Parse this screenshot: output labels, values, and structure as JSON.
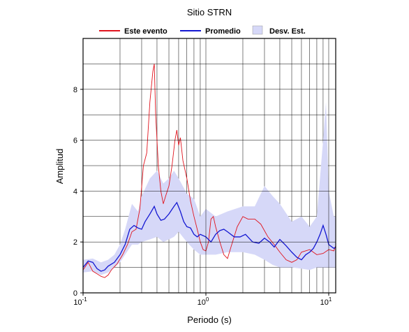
{
  "chart_data": {
    "type": "line",
    "title": "Sitio STRN",
    "x_label": "Periodo (s)",
    "y_label": "Amplitud",
    "xscale": "log",
    "xlim": [
      0.1,
      11.4
    ],
    "ylim": [
      0,
      10
    ],
    "xticks": [
      {
        "value": 0.1,
        "label": "10",
        "exponent": "-1"
      },
      {
        "value": 1,
        "label": "10",
        "exponent": "0"
      },
      {
        "value": 10,
        "label": "10",
        "exponent": "1"
      }
    ],
    "xminor": [
      0.2,
      0.3,
      0.4,
      0.5,
      0.6,
      0.7,
      0.8,
      0.9,
      2,
      3,
      4,
      5,
      6,
      7,
      8,
      9
    ],
    "yticks": [
      0,
      2,
      4,
      6,
      8
    ],
    "yminor": [
      1,
      3,
      5,
      7,
      9
    ],
    "grid": true,
    "legend": "top",
    "series": [
      {
        "name": "Este evento",
        "color": "#e0141e",
        "x": [
          0.1,
          0.11,
          0.12,
          0.13,
          0.14,
          0.15,
          0.16,
          0.17,
          0.19,
          0.21,
          0.23,
          0.25,
          0.27,
          0.29,
          0.31,
          0.33,
          0.35,
          0.37,
          0.38,
          0.39,
          0.41,
          0.43,
          0.45,
          0.47,
          0.5,
          0.53,
          0.56,
          0.58,
          0.6,
          0.62,
          0.65,
          0.7,
          0.75,
          0.8,
          0.85,
          0.9,
          0.95,
          1.0,
          1.05,
          1.1,
          1.15,
          1.2,
          1.3,
          1.4,
          1.5,
          1.6,
          1.8,
          2.0,
          2.2,
          2.5,
          2.8,
          3.2,
          3.6,
          4.0,
          4.5,
          5.0,
          5.5,
          6.0,
          7.0,
          8.0,
          9.0,
          10,
          11,
          11.4
        ],
        "values": [
          0.9,
          1.2,
          0.85,
          0.75,
          0.65,
          0.6,
          0.7,
          0.9,
          1.15,
          1.5,
          1.9,
          2.4,
          2.5,
          3.3,
          5.0,
          5.5,
          7.5,
          8.7,
          9.0,
          7.0,
          5.0,
          4.0,
          3.5,
          3.8,
          4.2,
          5.0,
          6.0,
          6.4,
          5.8,
          6.1,
          5.2,
          4.5,
          3.6,
          3.0,
          2.5,
          2.0,
          1.7,
          1.65,
          2.0,
          2.9,
          3.0,
          2.6,
          2.0,
          1.5,
          1.35,
          1.8,
          2.6,
          3.0,
          2.9,
          2.9,
          2.7,
          2.2,
          1.9,
          1.6,
          1.3,
          1.2,
          1.3,
          1.6,
          1.7,
          1.5,
          1.55,
          1.7,
          1.65,
          1.85
        ]
      },
      {
        "name": "Promedio",
        "color": "#1418d2",
        "x": [
          0.1,
          0.11,
          0.12,
          0.13,
          0.14,
          0.15,
          0.16,
          0.18,
          0.2,
          0.22,
          0.24,
          0.26,
          0.28,
          0.3,
          0.32,
          0.35,
          0.38,
          0.4,
          0.43,
          0.46,
          0.5,
          0.55,
          0.58,
          0.62,
          0.66,
          0.7,
          0.75,
          0.8,
          0.85,
          0.9,
          1.0,
          1.1,
          1.2,
          1.3,
          1.4,
          1.5,
          1.7,
          1.9,
          2.1,
          2.4,
          2.7,
          3.0,
          3.3,
          3.6,
          4.0,
          4.5,
          5.0,
          5.5,
          6.0,
          6.5,
          7.0,
          7.5,
          8.0,
          8.5,
          9.0,
          9.5,
          10,
          11,
          11.4
        ],
        "values": [
          1.0,
          1.25,
          1.2,
          0.95,
          0.85,
          0.9,
          1.05,
          1.2,
          1.5,
          1.9,
          2.5,
          2.65,
          2.55,
          2.5,
          2.8,
          3.1,
          3.4,
          3.1,
          2.85,
          2.9,
          3.1,
          3.4,
          3.55,
          3.2,
          2.8,
          2.6,
          2.55,
          2.3,
          2.2,
          2.3,
          2.2,
          2.0,
          2.3,
          2.45,
          2.5,
          2.4,
          2.2,
          2.2,
          2.3,
          2.0,
          1.95,
          2.15,
          2.0,
          1.8,
          2.1,
          1.85,
          1.6,
          1.4,
          1.3,
          1.5,
          1.6,
          1.75,
          2.0,
          2.3,
          2.65,
          2.3,
          1.9,
          1.75,
          1.8
        ]
      },
      {
        "name": "Desv. Est.",
        "color": "#d6d8f8",
        "x": [
          0.1,
          0.12,
          0.14,
          0.16,
          0.18,
          0.2,
          0.22,
          0.25,
          0.28,
          0.3,
          0.35,
          0.4,
          0.45,
          0.5,
          0.55,
          0.6,
          0.7,
          0.8,
          0.9,
          1.0,
          1.2,
          1.5,
          2.0,
          2.5,
          3.0,
          3.5,
          4.0,
          5.0,
          6.0,
          7.0,
          8.0,
          9.0,
          9.5,
          10,
          11,
          11.4
        ],
        "low": [
          0.8,
          0.85,
          0.7,
          0.8,
          1.0,
          1.2,
          1.5,
          1.9,
          1.9,
          2.0,
          2.1,
          2.2,
          2.0,
          2.1,
          2.2,
          2.4,
          2.0,
          1.7,
          1.5,
          1.5,
          1.5,
          1.6,
          1.6,
          1.5,
          1.3,
          1.1,
          1.0,
          1.0,
          0.95,
          0.9,
          1.0,
          1.0,
          1.0,
          1.0,
          1.0,
          1.0
        ],
        "high": [
          1.3,
          1.35,
          1.2,
          1.3,
          1.5,
          1.9,
          2.5,
          3.5,
          3.2,
          3.8,
          4.5,
          4.8,
          4.3,
          4.5,
          4.8,
          4.5,
          3.9,
          3.7,
          3.0,
          3.3,
          3.0,
          3.2,
          3.4,
          3.4,
          4.2,
          3.8,
          3.5,
          2.8,
          3.0,
          2.6,
          3.0,
          6.0,
          7.5,
          4.0,
          3.0,
          3.0
        ]
      }
    ]
  }
}
